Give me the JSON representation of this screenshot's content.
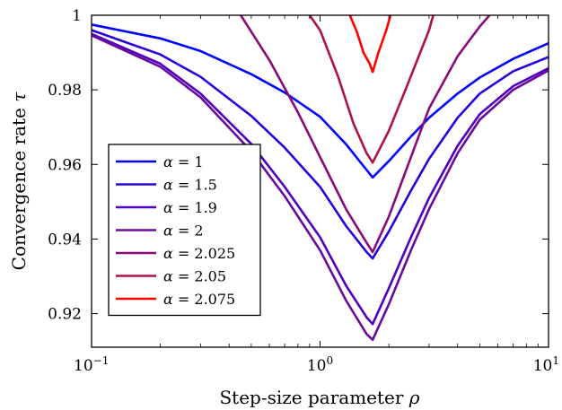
{
  "chart_data": {
    "type": "line",
    "title": "",
    "xlabel": "Step-size parameter ρ",
    "ylabel": "Convergence rate τ",
    "xscale": "log",
    "xlim": [
      0.1,
      10
    ],
    "ylim": [
      0.911,
      1.0
    ],
    "x_ticks": [
      0.1,
      1,
      10
    ],
    "x_tick_labels": [
      "10",
      "10",
      "10"
    ],
    "x_tick_exponents": [
      "−1",
      "0",
      "1"
    ],
    "y_ticks": [
      0.92,
      0.94,
      0.96,
      0.98,
      1
    ],
    "y_tick_labels": [
      "0.92",
      "0.94",
      "0.96",
      "0.98",
      "1"
    ],
    "grid": false,
    "legend_position": "bottom-left",
    "series": [
      {
        "name": "α = 1",
        "color": "#0000ff",
        "x": [
          0.1,
          0.2,
          0.3,
          0.5,
          0.7,
          1.0,
          1.3,
          1.6,
          1.7,
          2.0,
          2.5,
          3.0,
          4.0,
          5.0,
          7.0,
          10.0
        ],
        "y": [
          0.9975,
          0.9938,
          0.9904,
          0.9842,
          0.9793,
          0.9728,
          0.9654,
          0.9585,
          0.9565,
          0.9609,
          0.9675,
          0.9725,
          0.979,
          0.9833,
          0.9883,
          0.9925
        ]
      },
      {
        "name": "α = 1.5",
        "color": "#2a00dc",
        "x": [
          0.1,
          0.2,
          0.3,
          0.5,
          0.7,
          1.0,
          1.3,
          1.6,
          1.7,
          2.0,
          2.5,
          3.0,
          4.0,
          5.0,
          7.0,
          10.0
        ],
        "y": [
          0.996,
          0.9895,
          0.9835,
          0.973,
          0.9645,
          0.954,
          0.9435,
          0.9365,
          0.9348,
          0.942,
          0.953,
          0.9615,
          0.9725,
          0.979,
          0.985,
          0.9888
        ]
      },
      {
        "name": "α = 1.9",
        "color": "#5000c0",
        "x": [
          0.1,
          0.2,
          0.3,
          0.5,
          0.7,
          1.0,
          1.3,
          1.6,
          1.7,
          2.0,
          2.5,
          3.0,
          4.0,
          5.0,
          7.0,
          10.0
        ],
        "y": [
          0.995,
          0.987,
          0.979,
          0.9655,
          0.954,
          0.9405,
          0.9275,
          0.919,
          0.9172,
          0.9268,
          0.9405,
          0.951,
          0.965,
          0.9735,
          0.981,
          0.9858
        ]
      },
      {
        "name": "α = 2",
        "color": "#6a0a9c",
        "x": [
          0.1,
          0.2,
          0.3,
          0.5,
          0.7,
          1.0,
          1.3,
          1.6,
          1.7,
          2.0,
          2.5,
          3.0,
          4.0,
          5.0,
          7.0,
          10.0
        ],
        "y": [
          0.9946,
          0.9862,
          0.978,
          0.9635,
          0.9515,
          0.937,
          0.9235,
          0.9145,
          0.913,
          0.9225,
          0.937,
          0.948,
          0.963,
          0.972,
          0.98,
          0.9852
        ]
      },
      {
        "name": "α = 2.025",
        "color": "#8a0a78",
        "x": [
          0.1,
          0.2,
          0.3,
          0.45,
          0.6,
          0.8,
          1.0,
          1.3,
          1.6,
          1.7,
          2.0,
          2.5,
          3.0,
          4.0,
          5.0,
          6.5
        ],
        "y": [
          1.005,
          1.005,
          1.005,
          1.0,
          0.988,
          0.974,
          0.962,
          0.948,
          0.939,
          0.9365,
          0.946,
          0.962,
          0.975,
          0.989,
          0.997,
          1.005
        ]
      },
      {
        "name": "α = 2.05",
        "color": "#b0104c",
        "x": [
          0.8,
          0.9,
          1.0,
          1.2,
          1.4,
          1.6,
          1.7,
          2.0,
          2.4,
          3.0,
          3.3
        ],
        "y": [
          1.005,
          1.0,
          0.996,
          0.9835,
          0.971,
          0.963,
          0.9605,
          0.969,
          0.981,
          0.996,
          1.005
        ]
      },
      {
        "name": "α = 2.075",
        "color": "#ff0000",
        "x": [
          1.3,
          1.35,
          1.45,
          1.55,
          1.65,
          1.7,
          1.8,
          1.95,
          2.1
        ],
        "y": [
          1.003,
          1.0,
          0.9955,
          0.99,
          0.987,
          0.9848,
          0.99,
          0.996,
          1.003
        ]
      }
    ]
  }
}
